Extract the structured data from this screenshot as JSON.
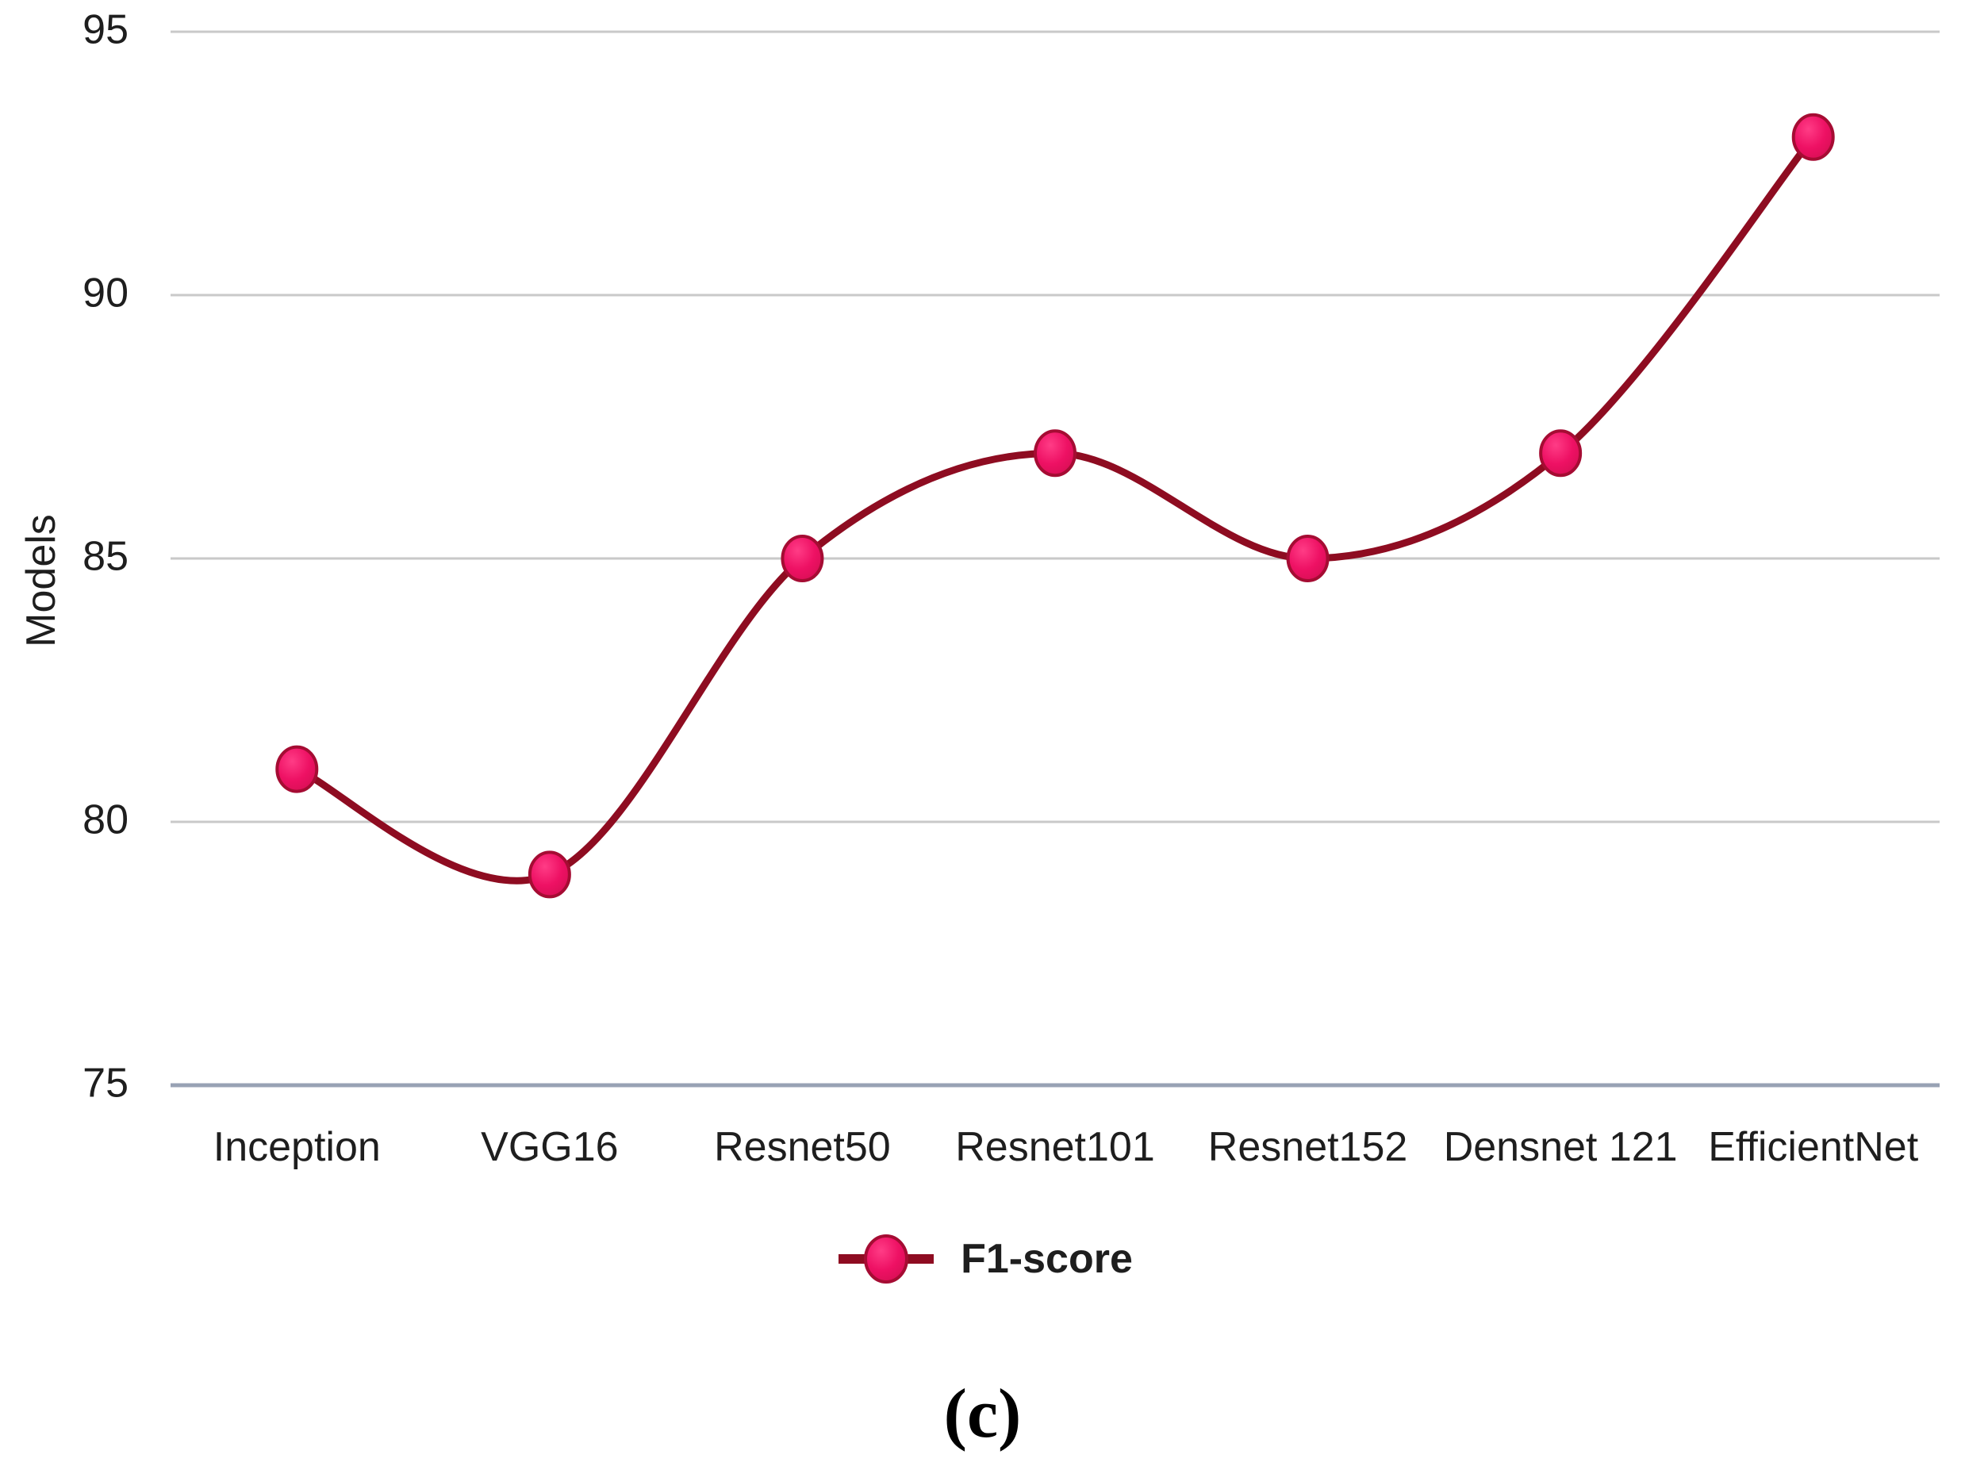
{
  "chart_data": {
    "type": "line",
    "categories": [
      "Inception",
      "VGG16",
      "Resnet50",
      "Resnet101",
      "Resnet152",
      "Densnet 121",
      "EfficientNet"
    ],
    "series": [
      {
        "name": "F1-score",
        "values": [
          81,
          79,
          85,
          87,
          85,
          87,
          93
        ]
      }
    ],
    "title": "",
    "xlabel": "",
    "ylabel": "Models",
    "ylim": [
      75,
      95
    ],
    "yticks": [
      75,
      80,
      85,
      90,
      95
    ],
    "grid": true,
    "smooth": true,
    "legend_position": "bottom"
  },
  "legend": {
    "label": "F1-score"
  },
  "caption": "(c)",
  "colors": {
    "line": "#8E0C21",
    "marker_fill": "#EE1164",
    "marker_fill_light": "#FF3C86",
    "marker_fill_dark": "#D60E53",
    "marker_stroke": "#A50C33",
    "grid": "#C9C9C9",
    "axis": "#98A2B4",
    "text": "#1E1E1E"
  }
}
